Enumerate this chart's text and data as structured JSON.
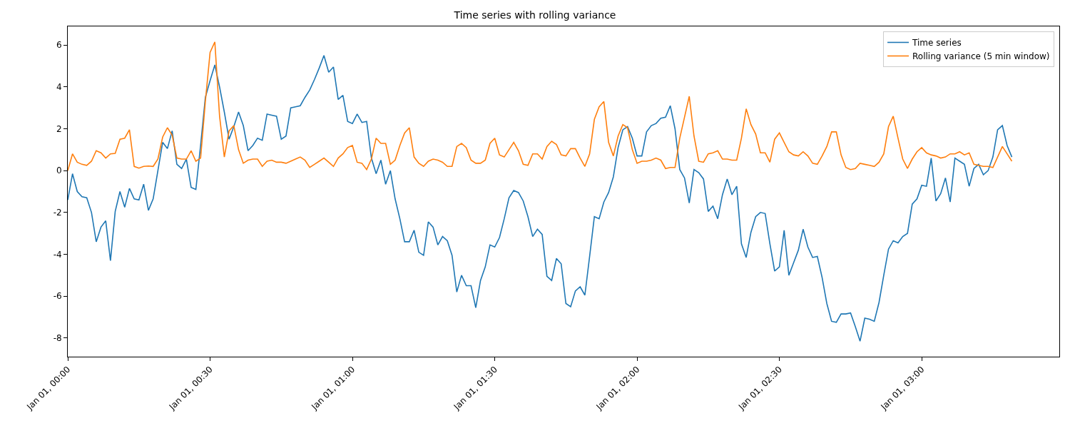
{
  "chart_data": {
    "type": "line",
    "title": "Time series with rolling variance",
    "x": [
      "--01-01T00:00",
      "--01-01T00:01",
      "--01-01T00:02",
      "--01-01T00:03",
      "--01-01T00:04",
      "--01-01T00:05",
      "--01-01T00:06",
      "--01-01T00:07",
      "--01-01T00:08",
      "--01-01T00:09",
      "--01-01T00:10",
      "--01-01T00:11",
      "--01-01T00:12",
      "--01-01T00:13",
      "--01-01T00:14",
      "--01-01T00:15",
      "--01-01T00:16",
      "--01-01T00:17",
      "--01-01T00:18",
      "--01-01T00:19",
      "--01-01T00:20",
      "--01-01T00:21",
      "--01-01T00:22",
      "--01-01T00:23",
      "--01-01T00:24",
      "--01-01T00:25",
      "--01-01T00:26",
      "--01-01T00:27",
      "--01-01T00:28",
      "--01-01T00:29",
      "--01-01T00:30",
      "--01-01T00:31",
      "--01-01T00:32",
      "--01-01T00:33",
      "--01-01T00:34",
      "--01-01T00:35",
      "--01-01T00:36",
      "--01-01T00:37",
      "--01-01T00:38",
      "--01-01T00:39",
      "--01-01T00:40",
      "--01-01T00:41",
      "--01-01T00:42",
      "--01-01T00:43",
      "--01-01T00:44",
      "--01-01T00:45",
      "--01-01T00:46",
      "--01-01T00:47",
      "--01-01T00:48",
      "--01-01T00:49",
      "--01-01T00:50",
      "--01-01T00:51",
      "--01-01T00:52",
      "--01-01T00:53",
      "--01-01T00:54",
      "--01-01T00:55",
      "--01-01T00:56",
      "--01-01T00:57",
      "--01-01T00:58",
      "--01-01T00:59",
      "--01-01T01:00",
      "--01-01T01:01",
      "--01-01T01:02",
      "--01-01T01:03",
      "--01-01T01:04",
      "--01-01T01:05",
      "--01-01T01:06",
      "--01-01T01:07",
      "--01-01T01:08",
      "--01-01T01:09",
      "--01-01T01:10",
      "--01-01T01:11",
      "--01-01T01:12",
      "--01-01T01:13",
      "--01-01T01:14",
      "--01-01T01:15",
      "--01-01T01:16",
      "--01-01T01:17",
      "--01-01T01:18",
      "--01-01T01:19",
      "--01-01T01:20",
      "--01-01T01:21",
      "--01-01T01:22",
      "--01-01T01:23",
      "--01-01T01:24",
      "--01-01T01:25",
      "--01-01T01:26",
      "--01-01T01:27",
      "--01-01T01:28",
      "--01-01T01:29",
      "--01-01T01:30",
      "--01-01T01:31",
      "--01-01T01:32",
      "--01-01T01:33",
      "--01-01T01:34",
      "--01-01T01:35",
      "--01-01T01:36",
      "--01-01T01:37",
      "--01-01T01:38",
      "--01-01T01:39",
      "--01-01T01:40",
      "--01-01T01:41",
      "--01-01T01:42",
      "--01-01T01:43",
      "--01-01T01:44",
      "--01-01T01:45",
      "--01-01T01:46",
      "--01-01T01:47",
      "--01-01T01:48",
      "--01-01T01:49",
      "--01-01T01:50",
      "--01-01T01:51",
      "--01-01T01:52",
      "--01-01T01:53",
      "--01-01T01:54",
      "--01-01T01:55",
      "--01-01T01:56",
      "--01-01T01:57",
      "--01-01T01:58",
      "--01-01T01:59",
      "--01-01T02:00",
      "--01-01T02:01",
      "--01-01T02:02",
      "--01-01T02:03",
      "--01-01T02:04",
      "--01-01T02:05",
      "--01-01T02:06",
      "--01-01T02:07",
      "--01-01T02:08",
      "--01-01T02:09",
      "--01-01T02:10",
      "--01-01T02:11",
      "--01-01T02:12",
      "--01-01T02:13",
      "--01-01T02:14",
      "--01-01T02:15",
      "--01-01T02:16",
      "--01-01T02:17",
      "--01-01T02:18",
      "--01-01T02:19",
      "--01-01T02:20",
      "--01-01T02:21",
      "--01-01T02:22",
      "--01-01T02:23",
      "--01-01T02:24",
      "--01-01T02:25",
      "--01-01T02:26",
      "--01-01T02:27",
      "--01-01T02:28",
      "--01-01T02:29",
      "--01-01T02:30",
      "--01-01T02:31",
      "--01-01T02:32",
      "--01-01T02:33",
      "--01-01T02:34",
      "--01-01T02:35",
      "--01-01T02:36",
      "--01-01T02:37",
      "--01-01T02:38",
      "--01-01T02:39",
      "--01-01T02:40",
      "--01-01T02:41",
      "--01-01T02:42",
      "--01-01T02:43",
      "--01-01T02:44",
      "--01-01T02:45",
      "--01-01T02:46",
      "--01-01T02:47",
      "--01-01T02:48",
      "--01-01T02:49",
      "--01-01T02:50",
      "--01-01T02:51",
      "--01-01T02:52",
      "--01-01T02:53",
      "--01-01T02:54",
      "--01-01T02:55",
      "--01-01T02:56",
      "--01-01T02:57",
      "--01-01T02:58",
      "--01-01T02:59",
      "--01-01T03:00",
      "--01-01T03:01",
      "--01-01T03:02",
      "--01-01T03:03",
      "--01-01T03:04",
      "--01-01T03:05",
      "--01-01T03:06",
      "--01-01T03:07",
      "--01-01T03:08",
      "--01-01T03:09",
      "--01-01T03:10",
      "--01-01T03:11",
      "--01-01T03:12",
      "--01-01T03:13",
      "--01-01T03:14",
      "--01-01T03:15",
      "--01-01T03:16",
      "--01-01T03:17",
      "--01-01T03:18",
      "--01-01T03:19"
    ],
    "series": [
      {
        "name": "Time series",
        "color": "#1f77b4",
        "values": [
          -1.4,
          -0.15,
          -1.0,
          -1.25,
          -1.3,
          -2.0,
          -3.4,
          -2.7,
          -2.4,
          -4.3,
          -1.95,
          -1.0,
          -1.75,
          -0.85,
          -1.35,
          -1.4,
          -0.65,
          -1.9,
          -1.35,
          0.0,
          1.35,
          1.05,
          1.9,
          0.3,
          0.1,
          0.55,
          -0.8,
          -0.9,
          1.2,
          3.5,
          4.3,
          5.05,
          4.0,
          2.8,
          1.5,
          2.1,
          2.8,
          2.15,
          0.95,
          1.2,
          1.55,
          1.45,
          2.7,
          2.65,
          2.6,
          1.5,
          1.65,
          3.0,
          3.05,
          3.1,
          3.5,
          3.85,
          4.35,
          4.9,
          5.5,
          4.7,
          4.95,
          3.4,
          3.6,
          2.35,
          2.25,
          2.7,
          2.3,
          2.35,
          0.6,
          -0.15,
          0.5,
          -0.65,
          0.0,
          -1.35,
          -2.3,
          -3.4,
          -3.4,
          -2.85,
          -3.9,
          -4.05,
          -2.45,
          -2.7,
          -3.55,
          -3.15,
          -3.35,
          -4.05,
          -5.8,
          -5.0,
          -5.5,
          -5.5,
          -6.55,
          -5.25,
          -4.6,
          -3.55,
          -3.65,
          -3.2,
          -2.3,
          -1.3,
          -0.95,
          -1.05,
          -1.45,
          -2.2,
          -3.15,
          -2.8,
          -3.05,
          -5.05,
          -5.25,
          -4.2,
          -4.45,
          -6.35,
          -6.5,
          -5.75,
          -5.55,
          -5.95,
          -4.1,
          -2.2,
          -2.3,
          -1.5,
          -1.05,
          -0.3,
          1.1,
          1.95,
          2.1,
          1.55,
          0.7,
          0.7,
          1.85,
          2.15,
          2.25,
          2.5,
          2.55,
          3.1,
          2.0,
          0.05,
          -0.35,
          -1.55,
          0.05,
          -0.1,
          -0.4,
          -1.95,
          -1.7,
          -2.3,
          -1.15,
          -0.4,
          -1.15,
          -0.75,
          -3.5,
          -4.15,
          -2.95,
          -2.2,
          -2.0,
          -2.05,
          -3.5,
          -4.8,
          -4.6,
          -2.85,
          -5.0,
          -4.4,
          -3.8,
          -2.8,
          -3.65,
          -4.15,
          -4.1,
          -5.1,
          -6.35,
          -7.2,
          -7.25,
          -6.85,
          -6.85,
          -6.8,
          -7.45,
          -8.15,
          -7.05,
          -7.1,
          -7.2,
          -6.3,
          -5.0,
          -3.75,
          -3.35,
          -3.45,
          -3.15,
          -3.0,
          -1.6,
          -1.35,
          -0.7,
          -0.75,
          0.6,
          -1.45,
          -1.1,
          -0.35,
          -1.5,
          0.6,
          0.45,
          0.3,
          -0.75,
          0.1,
          0.3,
          -0.2,
          0.0,
          0.65,
          1.95,
          2.15,
          1.2,
          0.65
        ]
      },
      {
        "name": "Rolling variance (5 min window)",
        "color": "#ff7f0e",
        "values": [
          0.0,
          0.8,
          0.4,
          0.3,
          0.25,
          0.45,
          0.95,
          0.85,
          0.6,
          0.8,
          0.82,
          1.5,
          1.55,
          1.95,
          0.2,
          0.12,
          0.2,
          0.22,
          0.2,
          0.55,
          1.6,
          2.05,
          1.7,
          0.6,
          0.55,
          0.55,
          0.95,
          0.45,
          0.6,
          3.3,
          5.65,
          6.15,
          2.6,
          0.65,
          1.9,
          2.15,
          1.0,
          0.35,
          0.5,
          0.55,
          0.55,
          0.2,
          0.45,
          0.5,
          0.4,
          0.4,
          0.35,
          0.45,
          0.55,
          0.65,
          0.5,
          0.15,
          0.3,
          0.45,
          0.6,
          0.4,
          0.2,
          0.6,
          0.8,
          1.1,
          1.2,
          0.4,
          0.35,
          0.05,
          0.55,
          1.55,
          1.3,
          1.3,
          0.3,
          0.5,
          1.2,
          1.8,
          2.05,
          0.65,
          0.35,
          0.2,
          0.45,
          0.55,
          0.5,
          0.4,
          0.2,
          0.2,
          1.15,
          1.3,
          1.1,
          0.5,
          0.35,
          0.35,
          0.5,
          1.3,
          1.55,
          0.75,
          0.65,
          1.0,
          1.35,
          0.95,
          0.3,
          0.25,
          0.8,
          0.8,
          0.55,
          1.15,
          1.4,
          1.25,
          0.75,
          0.7,
          1.05,
          1.05,
          0.6,
          0.2,
          0.8,
          2.45,
          3.05,
          3.3,
          1.35,
          0.7,
          1.65,
          2.2,
          2.05,
          1.0,
          0.35,
          0.45,
          0.45,
          0.5,
          0.6,
          0.5,
          0.1,
          0.15,
          0.15,
          1.55,
          2.55,
          3.55,
          1.65,
          0.45,
          0.4,
          0.8,
          0.85,
          0.95,
          0.55,
          0.55,
          0.5,
          0.5,
          1.55,
          2.95,
          2.2,
          1.75,
          0.85,
          0.85,
          0.4,
          1.5,
          1.8,
          1.35,
          0.9,
          0.75,
          0.7,
          0.9,
          0.7,
          0.35,
          0.3,
          0.7,
          1.15,
          1.85,
          1.85,
          0.75,
          0.15,
          0.05,
          0.1,
          0.35,
          0.3,
          0.25,
          0.2,
          0.4,
          0.8,
          2.1,
          2.6,
          1.55,
          0.55,
          0.1,
          0.55,
          0.9,
          1.1,
          0.85,
          0.75,
          0.7,
          0.6,
          0.65,
          0.8,
          0.8,
          0.9,
          0.75,
          0.85,
          0.3,
          0.25,
          0.2,
          0.2,
          0.15,
          0.65,
          1.15,
          0.8,
          0.45
        ]
      }
    ],
    "xlim": [
      "--01-01T00:00",
      "--01-01T03:29"
    ],
    "xticks": [
      {
        "value": "--01-01T00:00",
        "label": "Jan 01, 00:00"
      },
      {
        "value": "--01-01T00:30",
        "label": "Jan 01, 00:30"
      },
      {
        "value": "--01-01T01:00",
        "label": "Jan 01, 01:00"
      },
      {
        "value": "--01-01T01:30",
        "label": "Jan 01, 01:30"
      },
      {
        "value": "--01-01T02:00",
        "label": "Jan 01, 02:00"
      },
      {
        "value": "--01-01T02:30",
        "label": "Jan 01, 02:30"
      },
      {
        "value": "--01-01T03:00",
        "label": "Jan 01, 03:00"
      }
    ],
    "ylim": [
      -8.89,
      6.89
    ],
    "yticks": [
      -8,
      -6,
      -4,
      -2,
      0,
      2,
      4,
      6
    ],
    "grid": false,
    "legend": "top right",
    "marker": "none",
    "line_style": "solid"
  }
}
